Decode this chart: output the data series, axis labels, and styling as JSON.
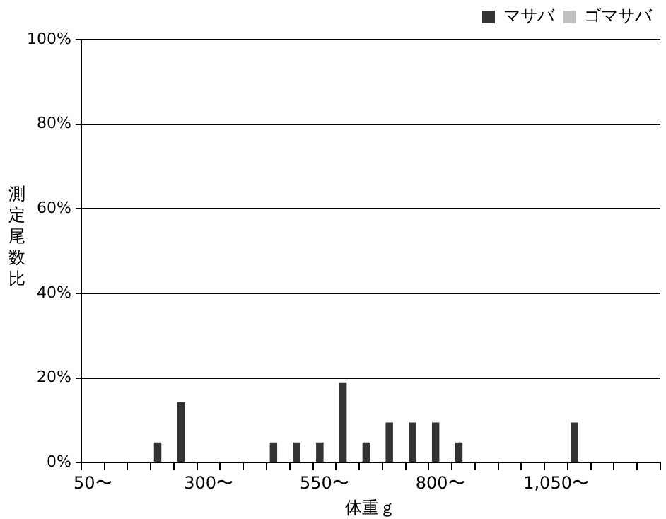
{
  "chart_data": {
    "type": "bar",
    "xlabel": "体重ｇ",
    "ylabel": "測定尾数比",
    "categories": [
      "50〜",
      null,
      null,
      null,
      null,
      "300〜",
      null,
      null,
      null,
      null,
      "550〜",
      null,
      null,
      null,
      null,
      "800〜",
      null,
      null,
      null,
      null,
      "1,050〜",
      null,
      null,
      null,
      null
    ],
    "series": [
      {
        "name": "マサバ",
        "color": "#333333",
        "values": [
          0,
          0,
          0,
          4.8,
          14.3,
          0,
          0,
          0,
          4.8,
          4.8,
          4.8,
          19.0,
          4.8,
          9.5,
          9.5,
          9.5,
          4.8,
          0,
          0,
          0,
          0,
          9.5,
          0,
          0,
          0
        ]
      },
      {
        "name": "ゴマサバ",
        "color": "#c0c0c0",
        "values": [
          0,
          0,
          0,
          0,
          0,
          0,
          0,
          0,
          0,
          0,
          0,
          0,
          0,
          0,
          0,
          0,
          0,
          0,
          0,
          0,
          0,
          0,
          0,
          0,
          0
        ]
      }
    ],
    "ylim": [
      0,
      100
    ],
    "yticks": [
      {
        "value": 0,
        "label": "0%"
      },
      {
        "value": 20,
        "label": "20%"
      },
      {
        "value": 40,
        "label": "40%"
      },
      {
        "value": 60,
        "label": "60%"
      },
      {
        "value": 80,
        "label": "80%"
      },
      {
        "value": 100,
        "label": "100%"
      }
    ],
    "grid": "y",
    "legend": "top right"
  }
}
